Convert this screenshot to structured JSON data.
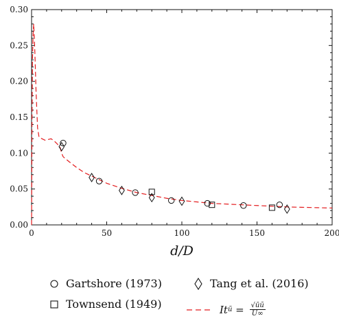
{
  "chart_data": {
    "type": "scatter",
    "xlabel": "d/D",
    "ylabel": "",
    "xlim": [
      0,
      200
    ],
    "ylim": [
      0,
      0.3
    ],
    "x_ticks": [
      "0",
      "50",
      "100",
      "150",
      "200"
    ],
    "y_ticks": [
      "0.00",
      "0.05",
      "0.10",
      "0.15",
      "0.20",
      "0.25",
      "0.30"
    ],
    "grid": false,
    "legend_placement": "bottom",
    "series": [
      {
        "name": "Gartshore (1973)",
        "marker": "circle",
        "points": [
          [
            21,
            0.114
          ],
          [
            45,
            0.061
          ],
          [
            69,
            0.045
          ],
          [
            93,
            0.034
          ],
          [
            117,
            0.03
          ],
          [
            141,
            0.027
          ],
          [
            165,
            0.028
          ]
        ]
      },
      {
        "name": "Townsend (1949)",
        "marker": "square",
        "points": [
          [
            80,
            0.046
          ],
          [
            120,
            0.028
          ],
          [
            160,
            0.024
          ]
        ]
      },
      {
        "name": "Tang et al. (2016)",
        "marker": "diamond",
        "points": [
          [
            20,
            0.109
          ],
          [
            40,
            0.066
          ],
          [
            60,
            0.048
          ],
          [
            80,
            0.038
          ],
          [
            100,
            0.033
          ],
          [
            170,
            0.022
          ]
        ]
      },
      {
        "name": "It_ũ = √(ũũ)/U∞",
        "marker": "dashed-line",
        "color": "#e31a1c",
        "points": [
          [
            0,
            0.0
          ],
          [
            0.3,
            0.15
          ],
          [
            0.6,
            0.23
          ],
          [
            1,
            0.265
          ],
          [
            1.4,
            0.28
          ],
          [
            1.8,
            0.262
          ],
          [
            2.2,
            0.24
          ],
          [
            3,
            0.185
          ],
          [
            4,
            0.135
          ],
          [
            5,
            0.122
          ],
          [
            7,
            0.12
          ],
          [
            9,
            0.118
          ],
          [
            11,
            0.119
          ],
          [
            13,
            0.12
          ],
          [
            15,
            0.117
          ],
          [
            17,
            0.113
          ],
          [
            19,
            0.108
          ],
          [
            20,
            0.1
          ],
          [
            21,
            0.095
          ],
          [
            25,
            0.088
          ],
          [
            30,
            0.08
          ],
          [
            35,
            0.073
          ],
          [
            40,
            0.068
          ],
          [
            45,
            0.063
          ],
          [
            50,
            0.058
          ],
          [
            60,
            0.051
          ],
          [
            70,
            0.045
          ],
          [
            80,
            0.041
          ],
          [
            90,
            0.037
          ],
          [
            100,
            0.034
          ],
          [
            110,
            0.032
          ],
          [
            120,
            0.03
          ],
          [
            130,
            0.029
          ],
          [
            140,
            0.028
          ],
          [
            150,
            0.027
          ],
          [
            160,
            0.026
          ],
          [
            170,
            0.025
          ],
          [
            180,
            0.0245
          ],
          [
            190,
            0.024
          ],
          [
            200,
            0.0235
          ]
        ]
      }
    ]
  },
  "legend": {
    "gartshore": "Gartshore (1973)",
    "tang": "Tang et al. (2016)",
    "townsend": "Townsend (1949)",
    "formula_lhs": "It",
    "formula_sub": "ũ",
    "formula_eq": " = ",
    "formula_num": "√ūũ",
    "formula_den": "U∞"
  }
}
